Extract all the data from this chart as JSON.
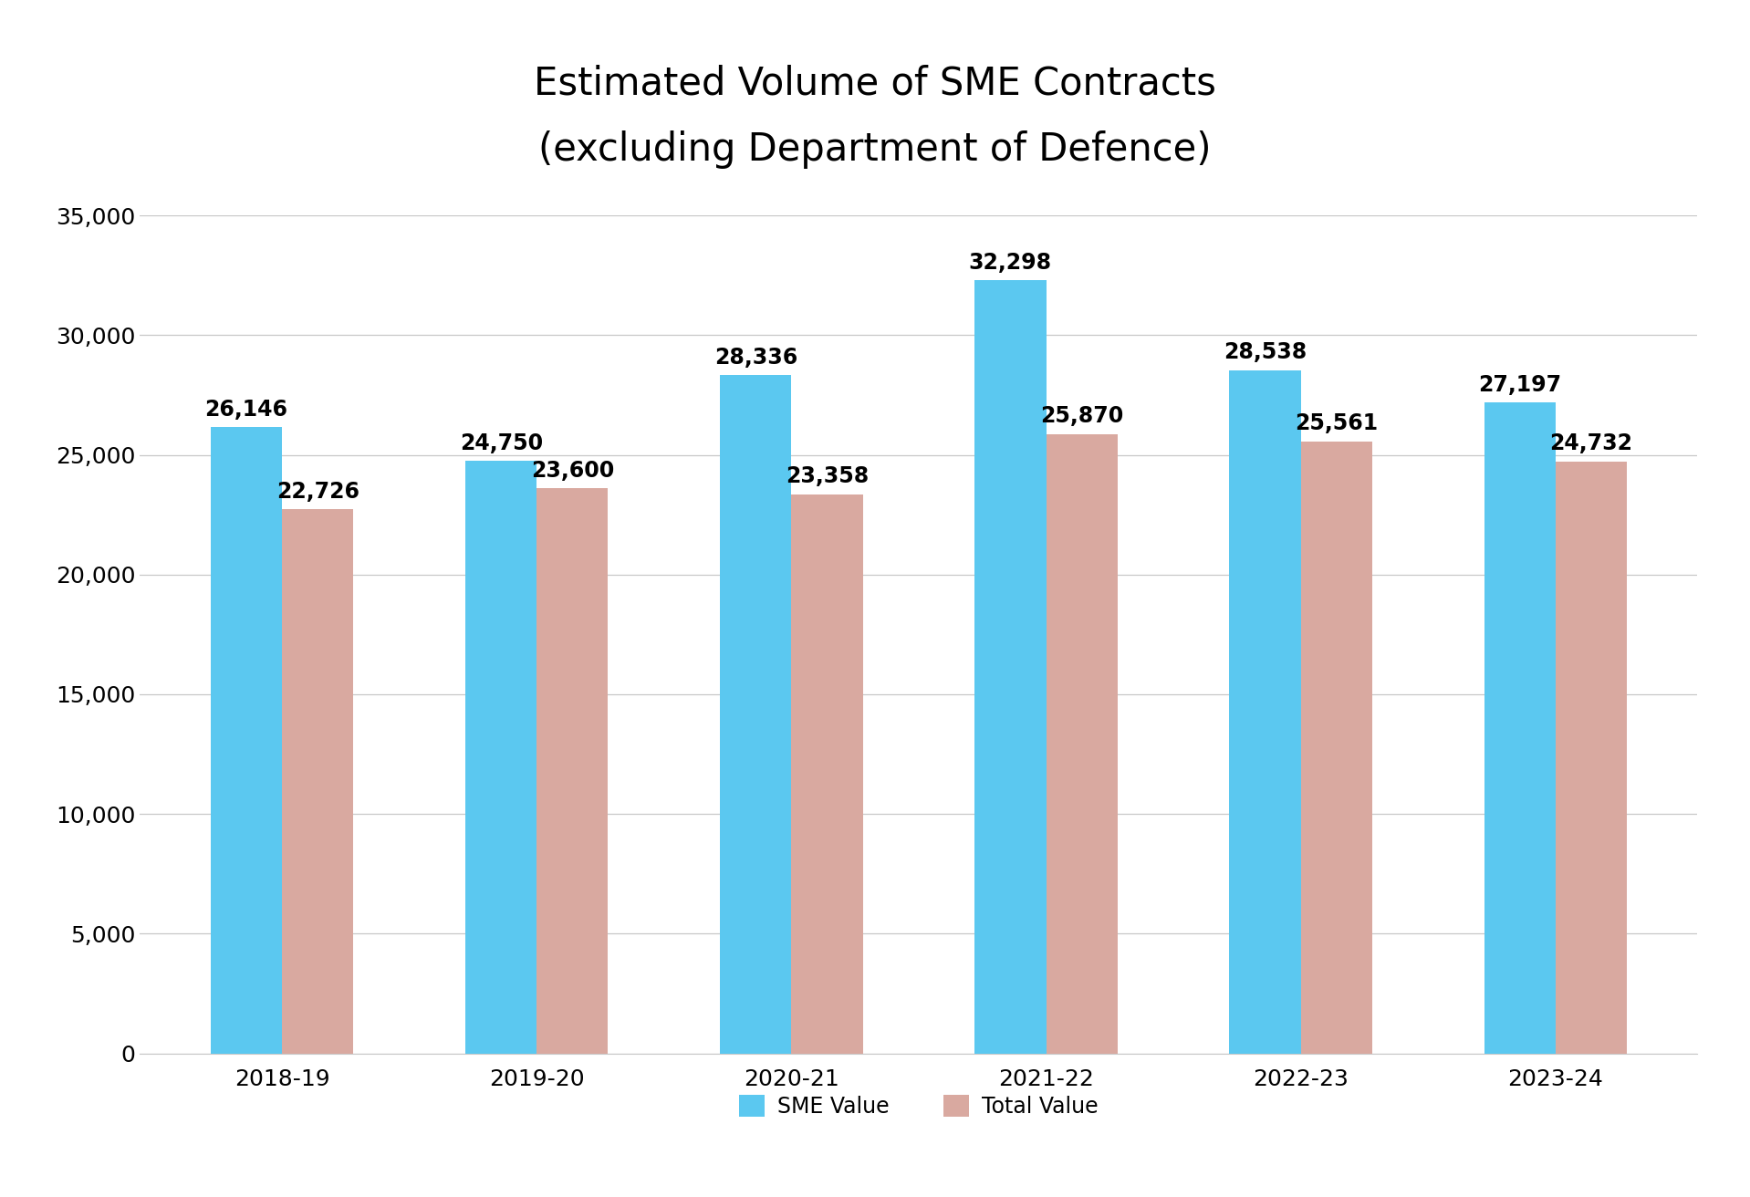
{
  "title_line1": "Estimated Volume of SME Contracts",
  "title_line2": "(excluding Department of Defence)",
  "categories": [
    "2018-19",
    "2019-20",
    "2020-21",
    "2021-22",
    "2022-23",
    "2023-24"
  ],
  "sme_values": [
    26146,
    24750,
    28336,
    32298,
    28538,
    27197
  ],
  "total_values": [
    22726,
    23600,
    23358,
    25870,
    25561,
    24732
  ],
  "sme_color": "#5BC8F0",
  "total_color": "#D9A9A0",
  "ylim": [
    0,
    35000
  ],
  "yticks": [
    0,
    5000,
    10000,
    15000,
    20000,
    25000,
    30000,
    35000
  ],
  "legend_sme": "SME Value",
  "legend_total": "Total Value",
  "bar_width": 0.28,
  "grid_color": "#C8C8C8",
  "background_color": "#FFFFFF",
  "title_fontsize": 30,
  "tick_fontsize": 18,
  "legend_fontsize": 17,
  "annotation_fontsize": 17
}
